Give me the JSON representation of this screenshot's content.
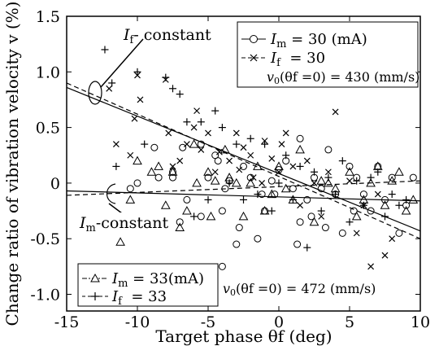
{
  "chart_data": {
    "type": "scatter",
    "title": "",
    "xlabel": "Target phase θf (deg)",
    "ylabel": "Change ratio of vibration velocity v (%)",
    "xlim": [
      -15,
      10
    ],
    "ylim": [
      -1.15,
      1.5
    ],
    "x_ticks": [
      -15,
      -10,
      -5,
      0,
      5,
      10
    ],
    "y_ticks": [
      1.5,
      1.0,
      0.5,
      0,
      -0.5,
      -1.0
    ],
    "x_tick_labels": [
      "-15",
      "-10",
      "-5",
      "0",
      "5",
      "10"
    ],
    "y_tick_labels": [
      "1.5",
      "1.0",
      "0.5",
      "0",
      "-0.5",
      "-1.0"
    ],
    "grid": false,
    "legend_top": {
      "position": "top-right",
      "entries": [
        {
          "marker": "circle",
          "line": "solid",
          "label_var": "I",
          "label_sub": "m",
          "label_rest": " = 30 (mA)"
        },
        {
          "marker": "x",
          "line": "dashed",
          "label_var": "I",
          "label_sub": "f",
          "label_rest": "  = 30"
        }
      ],
      "note_prefix": "v",
      "note_sub": "0",
      "note_rest": "(θf =0) = 430 (mm/s)"
    },
    "legend_bottom": {
      "position": "bottom-left",
      "entries": [
        {
          "marker": "triangle",
          "line": "dashdot",
          "label_var": "I",
          "label_sub": "m",
          "label_rest": " = 33(mA)"
        },
        {
          "marker": "plus",
          "line": "dashed",
          "label_var": "I",
          "label_sub": "f",
          "label_rest": "  = 33"
        }
      ],
      "note_prefix": "v",
      "note_sub": "0",
      "note_rest": "(θf =0) = 472 (mm/s)"
    },
    "annotations": [
      {
        "id": "if_constant",
        "var": "I",
        "sub": "f",
        "rest": "- constant"
      },
      {
        "id": "im_constant",
        "var": "I",
        "sub": "m",
        "rest": "-constant"
      }
    ],
    "fit_lines": [
      {
        "group": "If-constant",
        "style": "solid",
        "x": [
          -15,
          10
        ],
        "y": [
          0.86,
          -0.43
        ]
      },
      {
        "group": "If-constant",
        "style": "dashed",
        "x": [
          -15,
          10
        ],
        "y": [
          0.9,
          -0.5
        ]
      },
      {
        "group": "Im-constant",
        "style": "solid",
        "x": [
          -15,
          10
        ],
        "y": [
          -0.07,
          -0.16
        ]
      },
      {
        "group": "Im-constant",
        "style": "dashed",
        "x": [
          -15,
          10
        ],
        "y": [
          -0.11,
          0.02
        ]
      }
    ],
    "series": [
      {
        "name": "Im = 30 (mA)",
        "marker": "circle",
        "x": [
          -10.5,
          -10,
          -8.8,
          -8.5,
          -7.5,
          -7,
          -6.8,
          -6.5,
          -5.5,
          -5,
          -4.5,
          -4.3,
          -4,
          -3.8,
          -3.5,
          -3,
          -2.8,
          -2.5,
          -2,
          -1.5,
          -1.2,
          -1,
          -0.5,
          -0.3,
          0,
          0.5,
          1,
          1.3,
          1.5,
          2,
          2.3,
          2.5,
          3,
          3.3,
          3.5,
          4,
          4.5,
          5,
          5.3,
          5.5,
          6,
          6.5,
          7,
          7.5,
          8,
          8.5,
          9,
          9.5,
          -4,
          1.5,
          -7.5,
          -5.5
        ],
        "y": [
          -0.05,
          0.0,
          0.32,
          0.05,
          0.05,
          -0.35,
          0.32,
          -0.15,
          0.35,
          0.05,
          0.25,
          0.2,
          -0.25,
          -0.05,
          0.02,
          -0.55,
          -0.4,
          0.15,
          0.05,
          -0.5,
          -0.1,
          -0.25,
          0.02,
          -0.1,
          0.12,
          0.2,
          -0.05,
          -0.55,
          0.4,
          -0.15,
          -0.3,
          0.05,
          -0.05,
          -0.4,
          0.3,
          -0.1,
          -0.45,
          0.15,
          -0.25,
          0.05,
          -0.1,
          -0.25,
          0.15,
          -0.15,
          0.05,
          -0.45,
          -0.2,
          0.05,
          -0.75,
          -0.35,
          0.1,
          -0.3
        ]
      },
      {
        "name": "If = 30",
        "marker": "x",
        "x": [
          -12,
          -11.5,
          -10.5,
          -10.2,
          -10,
          -9.8,
          -8,
          -7.8,
          -7.5,
          -7,
          -6.5,
          -6,
          -5.8,
          -5.5,
          -5,
          -4.5,
          -4.2,
          -3.5,
          -3,
          -2.8,
          -2.5,
          -2,
          -1.8,
          -1.2,
          -1,
          -0.5,
          0,
          0.2,
          0.5,
          1,
          1.5,
          2,
          2.5,
          3,
          3.5,
          4,
          5,
          5.5,
          6,
          6.5,
          7,
          7.5,
          8
        ],
        "y": [
          0.85,
          0.35,
          0.25,
          0.58,
          0.97,
          0.75,
          0.93,
          0.45,
          0.15,
          0.2,
          0.35,
          0.5,
          0.65,
          0.3,
          0.45,
          0.1,
          0.28,
          0.2,
          0.45,
          0.12,
          0.32,
          0.25,
          0.05,
          0.0,
          0.38,
          0.22,
          0.1,
          0.35,
          0.45,
          0.15,
          -0.2,
          0.2,
          0.0,
          -0.3,
          0.1,
          0.64,
          0.02,
          -0.45,
          -0.2,
          -0.75,
          -0.1,
          -0.65,
          -0.5
        ]
      },
      {
        "name": "Im = 33(mA)",
        "marker": "triangle",
        "x": [
          -11.2,
          -10.5,
          -10,
          -9,
          -8.5,
          -8,
          -7.5,
          -7,
          -6.5,
          -6,
          -5.8,
          -5,
          -4.8,
          -4.5,
          -3.8,
          -3.5,
          -3,
          -2.5,
          -2,
          -1.5,
          -1,
          -0.5,
          0,
          0.5,
          1,
          1.5,
          2.5,
          3,
          3.5,
          4,
          5,
          5.5,
          6,
          6.5,
          7,
          7.5,
          8,
          8.5,
          9,
          9.5
        ],
        "y": [
          -0.53,
          -0.15,
          0.2,
          0.1,
          0.15,
          -0.2,
          0.1,
          -0.4,
          -0.25,
          0.35,
          0.0,
          0.1,
          -0.3,
          0.02,
          0.3,
          0.05,
          0.0,
          -0.3,
          0.0,
          0.15,
          -0.25,
          -0.1,
          0.15,
          -0.05,
          -0.15,
          0.3,
          -0.35,
          0.02,
          0.0,
          -0.05,
          0.1,
          -0.3,
          -0.15,
          0.0,
          0.15,
          -0.2,
          0.02,
          0.1,
          -0.25,
          -0.15
        ]
      },
      {
        "name": "If = 33",
        "marker": "plus",
        "x": [
          -12.3,
          -11.8,
          -11.5,
          -10,
          -9.5,
          -8,
          -7.5,
          -7,
          -6.5,
          -6,
          -5.5,
          -5,
          -4.5,
          -4,
          -3.5,
          -3,
          -2.5,
          -2,
          -1.5,
          -1,
          -0.5,
          0,
          0.5,
          1,
          1.5,
          2,
          2.5,
          3,
          3.5,
          4,
          4.5,
          5,
          5.5,
          6,
          6.5,
          7,
          7.5,
          8,
          8.5,
          9
        ],
        "y": [
          1.2,
          0.9,
          0.15,
          1.0,
          0.35,
          0.95,
          0.85,
          0.8,
          0.55,
          -0.3,
          0.55,
          -0.15,
          0.65,
          0.5,
          0.0,
          0.35,
          -0.15,
          0.4,
          -0.1,
          0.35,
          -0.25,
          0.0,
          0.25,
          -0.15,
          0.15,
          -0.58,
          0.1,
          -0.25,
          0.05,
          -0.1,
          0.2,
          -0.35,
          0.02,
          -0.2,
          0.05,
          0.1,
          -0.3,
          -0.1,
          -0.2,
          -0.15
        ]
      }
    ]
  }
}
